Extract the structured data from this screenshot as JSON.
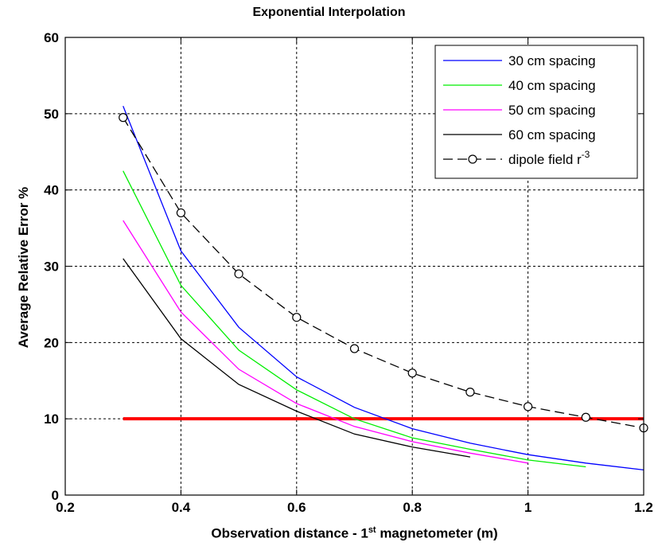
{
  "chart_data": {
    "type": "line",
    "title": "Exponential Interpolation",
    "xlabel_parts": [
      "Observation distance - 1",
      "st",
      " magnetometer (m)"
    ],
    "ylabel": "Average Relative Error %",
    "xlim": [
      0.2,
      1.2
    ],
    "ylim": [
      0,
      60
    ],
    "xticks": [
      0.2,
      0.4,
      0.6,
      0.8,
      1,
      1.2
    ],
    "xtick_labels": [
      "0.2",
      "0.4",
      "0.6",
      "0.8",
      "1",
      "1.2"
    ],
    "yticks": [
      0,
      10,
      20,
      30,
      40,
      50,
      60
    ],
    "ytick_labels": [
      "0",
      "10",
      "20",
      "30",
      "40",
      "50",
      "60"
    ],
    "grid": true,
    "legend_position": "top-right",
    "series": [
      {
        "name": "30 cm spacing",
        "color": "#0000ff",
        "dash": false,
        "marker": false,
        "x": [
          0.3,
          0.4,
          0.5,
          0.6,
          0.7,
          0.8,
          0.9,
          1.0,
          1.1,
          1.2
        ],
        "y": [
          51,
          32,
          22,
          15.5,
          11.5,
          8.7,
          6.8,
          5.3,
          4.2,
          3.3
        ]
      },
      {
        "name": "40 cm spacing",
        "color": "#00ee00",
        "dash": false,
        "marker": false,
        "x": [
          0.3,
          0.4,
          0.5,
          0.6,
          0.7,
          0.8,
          0.9,
          1.0,
          1.1
        ],
        "y": [
          42.5,
          27.5,
          19,
          13.8,
          10,
          7.5,
          6,
          4.6,
          3.7
        ]
      },
      {
        "name": "50 cm spacing",
        "color": "#ff00ff",
        "dash": false,
        "marker": false,
        "x": [
          0.3,
          0.4,
          0.5,
          0.6,
          0.7,
          0.8,
          0.9,
          1.0
        ],
        "y": [
          36,
          24,
          16.5,
          12,
          9,
          7,
          5.5,
          4.2
        ]
      },
      {
        "name": "60 cm spacing",
        "color": "#000000",
        "dash": false,
        "marker": false,
        "x": [
          0.3,
          0.4,
          0.5,
          0.6,
          0.7,
          0.8,
          0.9
        ],
        "y": [
          31,
          20.5,
          14.5,
          11,
          8,
          6.3,
          5
        ]
      },
      {
        "name": "dipole field r",
        "name_sup": "-3",
        "color": "#000000",
        "dash": true,
        "marker": true,
        "x": [
          0.3,
          0.4,
          0.5,
          0.6,
          0.7,
          0.8,
          0.9,
          1.0,
          1.1,
          1.2
        ],
        "y": [
          49.5,
          37,
          29,
          23.3,
          19.2,
          16,
          13.5,
          11.6,
          10.2,
          8.8
        ]
      }
    ],
    "reference_line": {
      "color": "#ff0000",
      "x": [
        0.3,
        1.2
      ],
      "y": [
        10,
        10
      ]
    }
  }
}
